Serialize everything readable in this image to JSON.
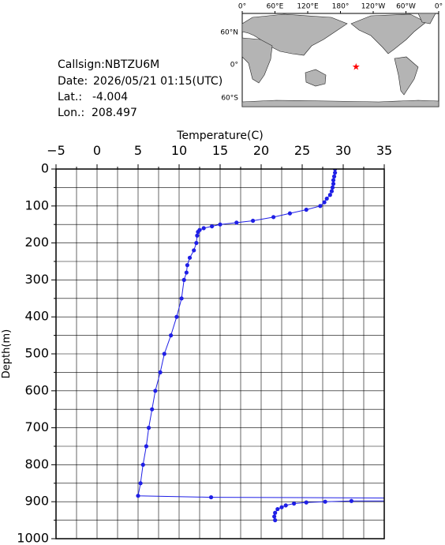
{
  "chart_data": {
    "type": "line",
    "info": {
      "callsign": "Callsign:NBTZU6M",
      "date_label": "Date:",
      "date": "2026/05/21 01:15(UTC)",
      "lat_label": "Lat.:",
      "lat": "-4.004",
      "lon_label": "Lon.:",
      "lon": "208.497"
    },
    "map": {
      "lon_labels": [
        "0°",
        "60°E",
        "120°E",
        "180°",
        "120°W",
        "60°W",
        "0°"
      ],
      "lat_labels": [
        "60°N",
        "0°",
        "60°S"
      ]
    },
    "x_label": "Temperature(C)",
    "y_label": "Depth(m)",
    "xlim": [
      -5,
      35
    ],
    "xticks": [
      {
        "value": -5,
        "label": "−5"
      },
      0,
      5,
      10,
      15,
      20,
      25,
      30,
      35
    ],
    "ylim": [
      0,
      1000
    ],
    "yticks": [
      0,
      100,
      200,
      300,
      400,
      500,
      600,
      700,
      800,
      900,
      1000
    ],
    "y_inverted": true,
    "grid": true,
    "series": [
      {
        "color": "#1f1fe6",
        "x": [
          29.0,
          29.0,
          28.9,
          28.8,
          28.8,
          28.7,
          28.6,
          28.4,
          28.0,
          27.7,
          27.2,
          25.5,
          23.5,
          21.5,
          19.0,
          17.0,
          15.0,
          14.0,
          13.0,
          12.5,
          12.3,
          12.2,
          12.1,
          11.8,
          11.3,
          11.0,
          10.9,
          10.6,
          10.3,
          9.7,
          9.0,
          8.2,
          7.7,
          7.1,
          6.7,
          6.3,
          6.0,
          5.6,
          5.3,
          5.0,
          13.9,
          36,
          36,
          31,
          27.8,
          25.5,
          24,
          23,
          22.5,
          22,
          21.7,
          21.6,
          21.7
        ],
        "values": [
          0,
          10,
          20,
          30,
          40,
          50,
          60,
          70,
          80,
          90,
          100,
          110,
          120,
          130,
          140,
          145,
          150,
          155,
          160,
          165,
          170,
          180,
          200,
          220,
          240,
          260,
          280,
          300,
          350,
          400,
          450,
          500,
          550,
          600,
          650,
          700,
          750,
          800,
          850,
          884,
          888,
          890,
          898,
          898,
          900,
          902,
          905,
          910,
          915,
          920,
          930,
          940,
          950
        ]
      }
    ]
  }
}
